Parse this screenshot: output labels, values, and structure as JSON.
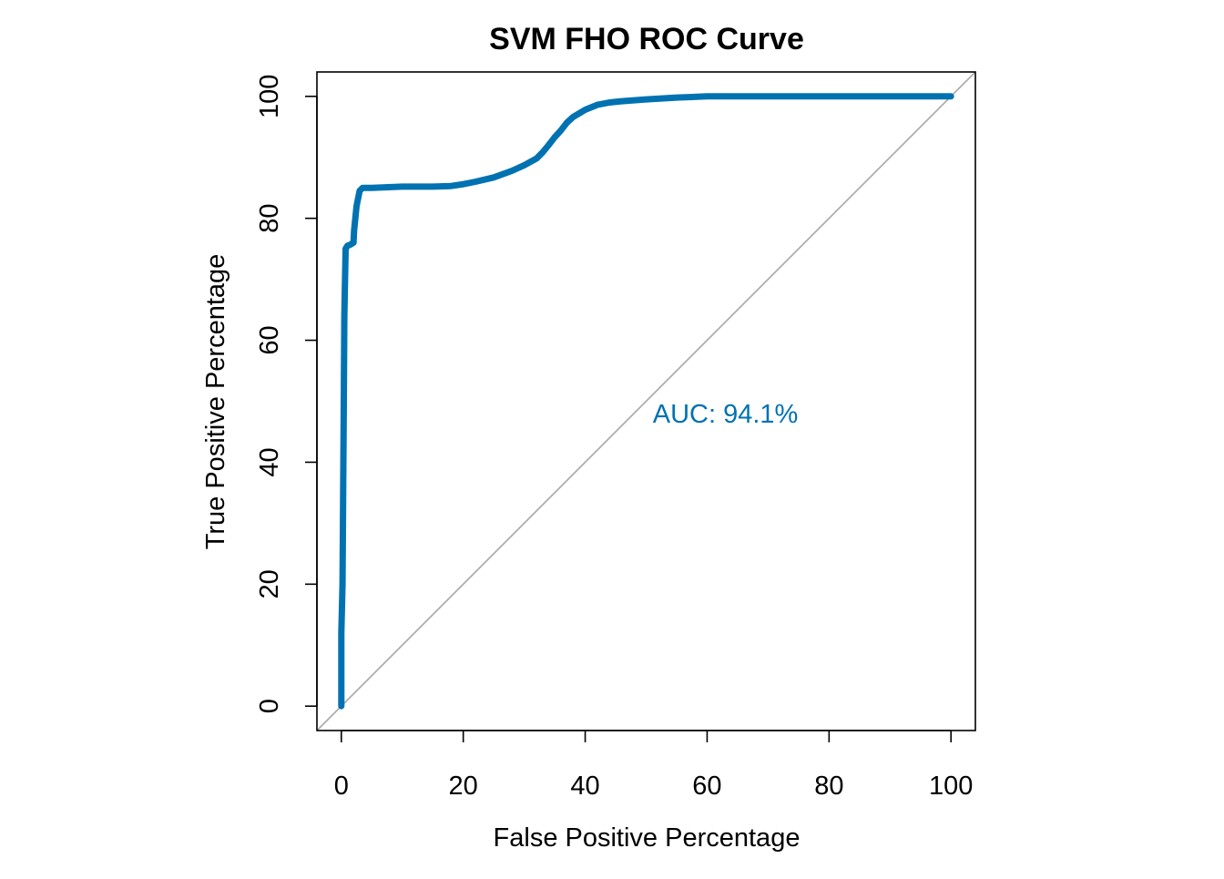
{
  "chart_data": {
    "type": "line",
    "title": "SVM FHO ROC Curve",
    "xlabel": "False Positive Percentage",
    "ylabel": "True Positive Percentage",
    "xlim": [
      -4,
      104
    ],
    "ylim": [
      -4,
      104
    ],
    "x_ticks": [
      0,
      20,
      40,
      60,
      80,
      100
    ],
    "y_ticks": [
      0,
      20,
      40,
      60,
      80,
      100
    ],
    "grid": false,
    "legend": "none",
    "colors": {
      "curve": "#0072B2",
      "diagonal": "#A6A6A6",
      "axis": "#000000"
    },
    "annotation": {
      "text": "AUC: 94.1%",
      "x": 63,
      "y": 48
    },
    "diagonal": {
      "x": [
        -4,
        104
      ],
      "y": [
        -4,
        104
      ]
    },
    "series": [
      {
        "x": [
          0,
          0,
          0.2,
          0.3,
          0.4,
          0.5,
          0.7,
          1.0,
          1.5,
          2.0,
          2.1,
          2.5,
          3.0,
          3.5,
          5,
          10,
          15,
          18,
          20,
          22,
          25,
          28,
          30,
          32,
          33,
          34,
          35,
          36,
          37,
          38,
          40,
          42,
          44,
          46,
          50,
          55,
          60,
          70,
          80,
          90,
          100
        ],
        "y": [
          0,
          12,
          20,
          35,
          50,
          64,
          75,
          75.5,
          75.7,
          76,
          78,
          82,
          84.5,
          85,
          85,
          85.2,
          85.2,
          85.3,
          85.6,
          86,
          86.7,
          87.8,
          88.7,
          89.8,
          90.8,
          92.0,
          93.3,
          94.4,
          95.7,
          96.6,
          97.8,
          98.6,
          99.0,
          99.2,
          99.5,
          99.8,
          100,
          100,
          100,
          100,
          100
        ]
      }
    ]
  }
}
